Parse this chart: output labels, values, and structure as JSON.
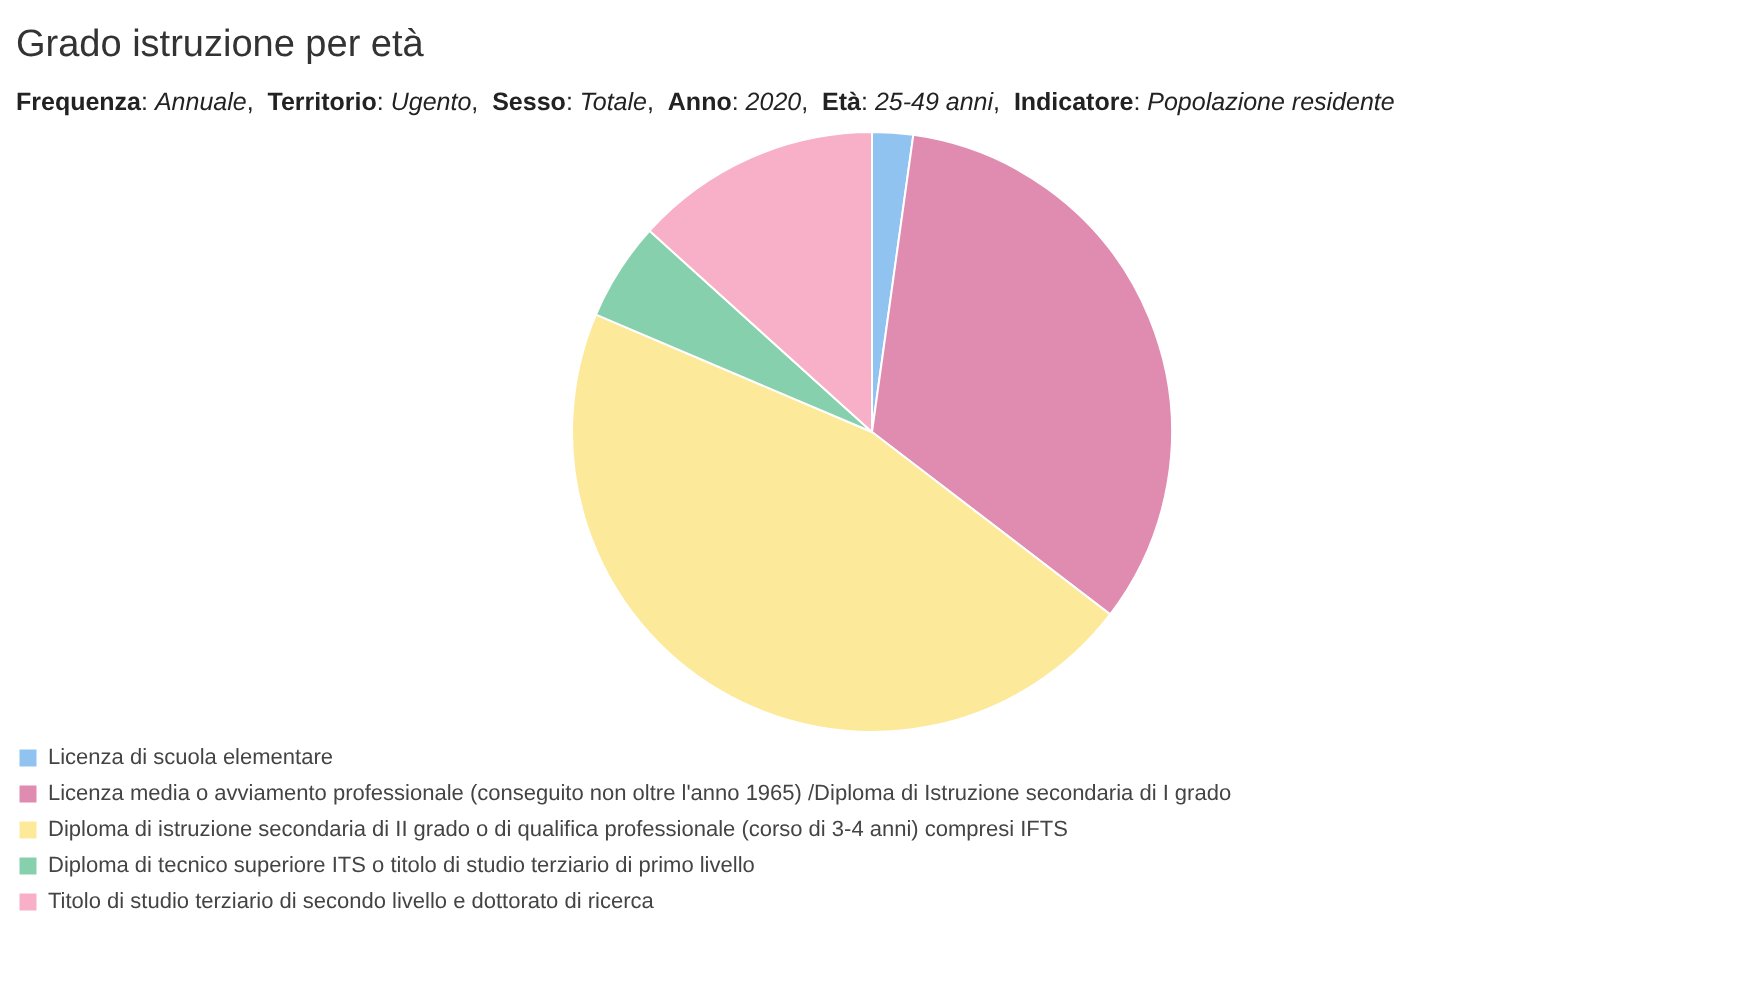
{
  "chart_data": {
    "type": "pie",
    "title": "Grado istruzione per età",
    "subtitle": "Frequenza: Annuale,  Territorio: Ugento,  Sesso: Totale,  Anno: 2020,  Età: 25-49 anni,  Indicatore: Popolazione residente",
    "categories": [
      "Licenza di scuola elementare",
      "Licenza media o avviamento professionale (conseguito non oltre l'anno 1965) /Diploma di Istruzione secondaria di I grado",
      "Diploma di istruzione secondaria di II grado o di qualifica professionale (corso di 3-4 anni) compresi IFTS",
      "Diploma di tecnico superiore ITS o titolo di studio terziario di primo livello",
      "Titolo di studio terziario di secondo livello e dottorato di ricerca"
    ],
    "values": [
      2.2,
      33.2,
      46.0,
      5.3,
      13.3
    ],
    "colors": [
      "#90c3f0",
      "#e08bb0",
      "#fce99a",
      "#86d0ad",
      "#f7b0c8"
    ],
    "legend": "bottom"
  }
}
